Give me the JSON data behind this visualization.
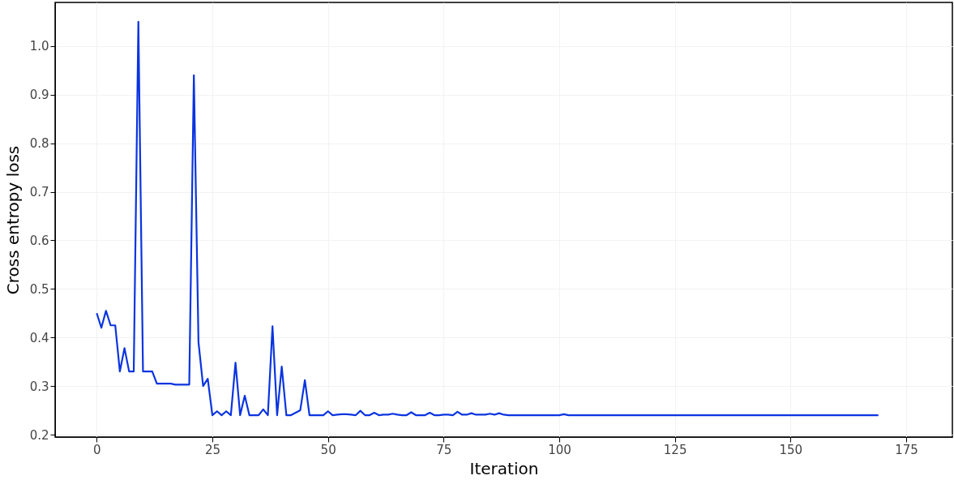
{
  "chart_data": {
    "type": "line",
    "xlabel": "Iteration",
    "ylabel": "Cross entropy loss",
    "x": [
      0,
      1,
      2,
      3,
      4,
      5,
      6,
      7,
      8,
      9,
      10,
      11,
      12,
      13,
      14,
      15,
      16,
      17,
      18,
      19,
      20,
      21,
      22,
      23,
      24,
      25,
      26,
      27,
      28,
      29,
      30,
      31,
      32,
      33,
      34,
      35,
      36,
      37,
      38,
      39,
      40,
      41,
      42,
      43,
      44,
      45,
      46,
      47,
      48,
      49,
      50,
      51,
      52,
      53,
      54,
      55,
      56,
      57,
      58,
      59,
      60,
      61,
      62,
      63,
      64,
      65,
      66,
      67,
      68,
      69,
      70,
      71,
      72,
      73,
      74,
      75,
      76,
      77,
      78,
      79,
      80,
      81,
      82,
      83,
      84,
      85,
      86,
      87,
      88,
      89,
      90,
      91,
      92,
      93,
      94,
      95,
      96,
      97,
      98,
      99,
      100,
      101,
      102,
      103,
      104,
      105,
      106,
      107,
      108,
      109,
      110,
      111,
      112,
      113,
      114,
      115,
      116,
      117,
      118,
      119,
      120,
      121,
      122,
      123,
      124,
      125,
      126,
      127,
      128,
      129,
      130,
      131,
      132,
      133,
      134,
      135,
      136,
      137,
      138,
      139,
      140,
      141,
      142,
      143,
      144,
      145,
      146,
      147,
      148,
      149,
      150,
      151,
      152,
      153,
      154,
      155,
      156,
      157,
      158,
      159,
      160,
      161,
      162,
      163,
      164,
      165,
      166,
      167,
      168,
      169
    ],
    "series": [
      {
        "color": "#0a34e0",
        "values": [
          0.45,
          0.42,
          0.455,
          0.425,
          0.425,
          0.33,
          0.378,
          0.33,
          0.33,
          1.05,
          0.33,
          0.33,
          0.33,
          0.305,
          0.305,
          0.305,
          0.305,
          0.303,
          0.303,
          0.303,
          0.303,
          0.94,
          0.39,
          0.3,
          0.315,
          0.24,
          0.248,
          0.24,
          0.248,
          0.24,
          0.348,
          0.24,
          0.28,
          0.24,
          0.24,
          0.24,
          0.252,
          0.24,
          0.423,
          0.24,
          0.34,
          0.24,
          0.24,
          0.245,
          0.25,
          0.312,
          0.24,
          0.24,
          0.24,
          0.24,
          0.248,
          0.24,
          0.241,
          0.242,
          0.242,
          0.241,
          0.24,
          0.249,
          0.24,
          0.24,
          0.245,
          0.24,
          0.241,
          0.241,
          0.243,
          0.241,
          0.24,
          0.24,
          0.246,
          0.24,
          0.24,
          0.24,
          0.245,
          0.24,
          0.24,
          0.241,
          0.241,
          0.24,
          0.247,
          0.241,
          0.241,
          0.244,
          0.241,
          0.241,
          0.241,
          0.243,
          0.241,
          0.244,
          0.241,
          0.24,
          0.24,
          0.24,
          0.24,
          0.24,
          0.24,
          0.24,
          0.24,
          0.24,
          0.24,
          0.24,
          0.24,
          0.242,
          0.24,
          0.24,
          0.24,
          0.24,
          0.24,
          0.24,
          0.24,
          0.24,
          0.24,
          0.24,
          0.24,
          0.24,
          0.24,
          0.24,
          0.24,
          0.24,
          0.24,
          0.24,
          0.24,
          0.24,
          0.24,
          0.24,
          0.24,
          0.24,
          0.24,
          0.24,
          0.24,
          0.24,
          0.24,
          0.24,
          0.24,
          0.24,
          0.24,
          0.24,
          0.24,
          0.24,
          0.24,
          0.24,
          0.24,
          0.24,
          0.24,
          0.24,
          0.24,
          0.24,
          0.24,
          0.24,
          0.24,
          0.24,
          0.24,
          0.24,
          0.24,
          0.24,
          0.24,
          0.24,
          0.24,
          0.24,
          0.24,
          0.24,
          0.24,
          0.24,
          0.24,
          0.24,
          0.24,
          0.24,
          0.24,
          0.24,
          0.24,
          0.24
        ]
      }
    ],
    "xlim": [
      -9,
      185
    ],
    "xticks": [
      0,
      25,
      50,
      75,
      100,
      125,
      150,
      175
    ],
    "ylim": [
      0.195,
      1.09
    ],
    "yticks": [
      0.2,
      0.3,
      0.4,
      0.5,
      0.6,
      0.7,
      0.8,
      0.9,
      {
        "value": 1.0,
        "label": "1.0"
      }
    ],
    "grid": true,
    "marker": "none",
    "line_style": "solid"
  }
}
